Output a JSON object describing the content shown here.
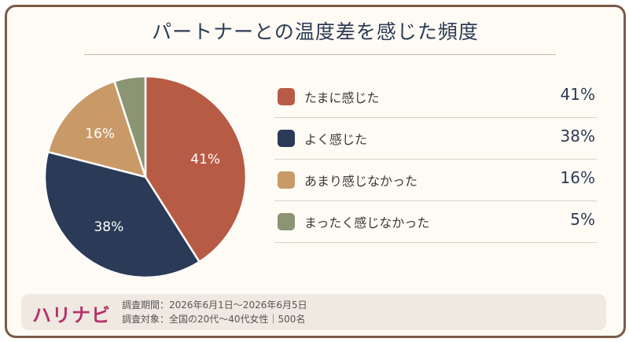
{
  "title": "パートナーとの温度差を感じた頻度",
  "footer": {
    "logo": "ハリナビ",
    "period": "調査期間：2026年6月1日〜2026年6月5日",
    "target": "調査対象：全国の20代〜40代女性｜500名"
  },
  "legend": [
    {
      "label": "たまに感じた",
      "value_text": "41%"
    },
    {
      "label": "よく感じた",
      "value_text": "38%"
    },
    {
      "label": "あまり感じなかった",
      "value_text": "16%"
    },
    {
      "label": "まったく感じなかった",
      "value_text": "5%"
    }
  ],
  "chart_data": {
    "type": "pie",
    "categories": [
      "たまに感じた",
      "よく感じた",
      "あまり感じなかった",
      "まったく感じなかった"
    ],
    "values": [
      41,
      38,
      16,
      5
    ],
    "labels": [
      "41%",
      "38%",
      "16%",
      ""
    ],
    "colors": [
      "#b85b44",
      "#2b3a56",
      "#c99a68",
      "#8b9473"
    ],
    "title": "パートナーとの温度差を感じた頻度",
    "legend": "right"
  }
}
